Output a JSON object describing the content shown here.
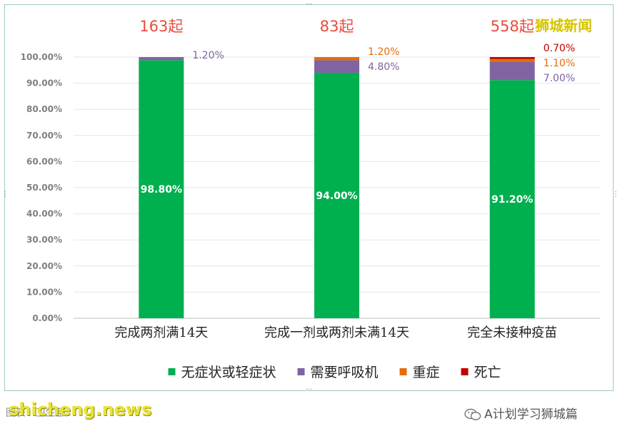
{
  "logo_text": "狮城新闻",
  "source_note": "图表：卫生部",
  "watermark": "shicheng.news",
  "wechat_account": "A计划学习狮城篇",
  "chart_data": {
    "type": "bar",
    "stacked": true,
    "title": "",
    "xlabel": "",
    "ylabel": "",
    "ylim": [
      0,
      100
    ],
    "yticks": [
      "0.00%",
      "10.00%",
      "20.00%",
      "30.00%",
      "40.00%",
      "50.00%",
      "60.00%",
      "70.00%",
      "80.00%",
      "90.00%",
      "100.00%"
    ],
    "categories": [
      "完成两剂满14天",
      "完成一剂或两剂未满14天",
      "完全未接种疫苗"
    ],
    "case_counts": [
      "163起",
      "83起",
      "558起"
    ],
    "series": [
      {
        "name": "无症状或轻症状",
        "color": "#00b04f",
        "values": [
          98.8,
          94.0,
          91.2
        ],
        "labels": [
          "98.80%",
          "94.00%",
          "91.20%"
        ]
      },
      {
        "name": "需要呼吸机",
        "color": "#8064a2",
        "values": [
          1.2,
          4.8,
          7.0
        ],
        "labels": [
          "1.20%",
          "4.80%",
          "7.00%"
        ]
      },
      {
        "name": "重症",
        "color": "#e46c0a",
        "values": [
          0,
          1.2,
          1.1
        ],
        "labels": [
          "",
          "1.20%",
          "1.10%"
        ]
      },
      {
        "name": "死亡",
        "color": "#c00000",
        "values": [
          0,
          0,
          0.7
        ],
        "labels": [
          "",
          "",
          "0.70%"
        ]
      }
    ],
    "legend_position": "bottom",
    "grid": true
  }
}
